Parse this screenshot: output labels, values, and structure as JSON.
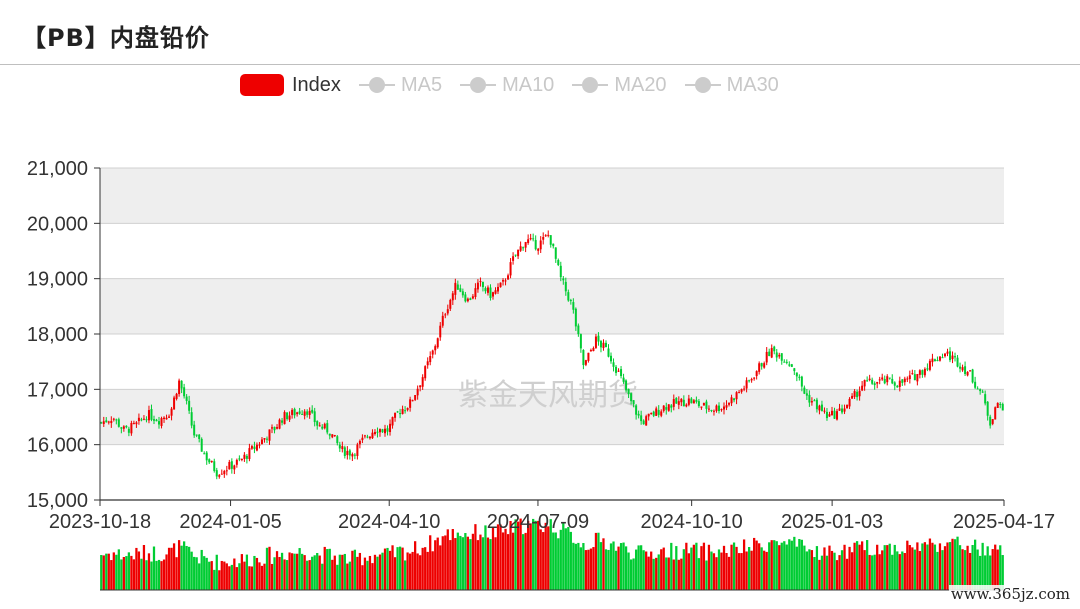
{
  "title": "【PB】内盘铅价",
  "legend": [
    {
      "label": "Index",
      "active": true,
      "color": "#ee0000"
    },
    {
      "label": "MA5",
      "active": false,
      "color": "#cccccc"
    },
    {
      "label": "MA10",
      "active": false,
      "color": "#cccccc"
    },
    {
      "label": "MA20",
      "active": false,
      "color": "#cccccc"
    },
    {
      "label": "MA30",
      "active": false,
      "color": "#cccccc"
    }
  ],
  "watermark": "紫金天风期货",
  "site_mark": "www.365jz.com",
  "colors": {
    "up": "#ee0000",
    "down": "#00cc33",
    "band": "#eeeeee",
    "grid": "#d0d0d0"
  },
  "chart_data": {
    "type": "candlestick",
    "ylim": [
      15000,
      21000
    ],
    "yticks": [
      "15,000",
      "16,000",
      "17,000",
      "18,000",
      "19,000",
      "20,000",
      "21,000"
    ],
    "ytick_values": [
      15000,
      16000,
      17000,
      18000,
      19000,
      20000,
      21000
    ],
    "xlim": [
      "2023-10-18",
      "2025-04-17"
    ],
    "xticks": [
      "2023-10-18",
      "2024-01-05",
      "2024-04-10",
      "2024-07-09",
      "2024-10-10",
      "2025-01-03",
      "2025-04-17"
    ],
    "close_series": [
      [
        "2023-10-18",
        16400
      ],
      [
        "2023-10-25",
        16500
      ],
      [
        "2023-11-01",
        16250
      ],
      [
        "2023-11-08",
        16350
      ],
      [
        "2023-11-15",
        16550
      ],
      [
        "2023-11-22",
        16450
      ],
      [
        "2023-11-29",
        16600
      ],
      [
        "2023-12-04",
        17150
      ],
      [
        "2023-12-08",
        16800
      ],
      [
        "2023-12-13",
        16200
      ],
      [
        "2023-12-20",
        15800
      ],
      [
        "2023-12-27",
        15500
      ],
      [
        "2024-01-03",
        15600
      ],
      [
        "2024-01-10",
        15700
      ],
      [
        "2024-01-17",
        15900
      ],
      [
        "2024-01-24",
        16100
      ],
      [
        "2024-01-31",
        16300
      ],
      [
        "2024-02-05",
        16500
      ],
      [
        "2024-02-19",
        16650
      ],
      [
        "2024-02-26",
        16350
      ],
      [
        "2024-03-04",
        16250
      ],
      [
        "2024-03-11",
        15900
      ],
      [
        "2024-03-18",
        15850
      ],
      [
        "2024-03-25",
        16100
      ],
      [
        "2024-04-01",
        16300
      ],
      [
        "2024-04-08",
        16250
      ],
      [
        "2024-04-15",
        16600
      ],
      [
        "2024-04-22",
        16750
      ],
      [
        "2024-04-29",
        17200
      ],
      [
        "2024-05-06",
        17700
      ],
      [
        "2024-05-13",
        18400
      ],
      [
        "2024-05-20",
        18900
      ],
      [
        "2024-05-27",
        18600
      ],
      [
        "2024-06-03",
        18900
      ],
      [
        "2024-06-10",
        18700
      ],
      [
        "2024-06-17",
        18900
      ],
      [
        "2024-06-24",
        19400
      ],
      [
        "2024-07-01",
        19700
      ],
      [
        "2024-07-08",
        19600
      ],
      [
        "2024-07-15",
        19800
      ],
      [
        "2024-07-22",
        19000
      ],
      [
        "2024-07-29",
        18500
      ],
      [
        "2024-08-05",
        17400
      ],
      [
        "2024-08-12",
        17900
      ],
      [
        "2024-08-19",
        17700
      ],
      [
        "2024-08-26",
        17300
      ],
      [
        "2024-09-02",
        16800
      ],
      [
        "2024-09-09",
        16400
      ],
      [
        "2024-09-23",
        16700
      ],
      [
        "2024-10-08",
        16800
      ],
      [
        "2024-10-15",
        16700
      ],
      [
        "2024-10-22",
        16650
      ],
      [
        "2024-10-29",
        16700
      ],
      [
        "2024-11-05",
        16900
      ],
      [
        "2024-11-12",
        17100
      ],
      [
        "2024-11-19",
        17400
      ],
      [
        "2024-11-26",
        17700
      ],
      [
        "2024-12-03",
        17600
      ],
      [
        "2024-12-10",
        17400
      ],
      [
        "2024-12-17",
        16900
      ],
      [
        "2024-12-24",
        16700
      ],
      [
        "2024-12-31",
        16500
      ],
      [
        "2025-01-07",
        16600
      ],
      [
        "2025-01-14",
        16800
      ],
      [
        "2025-01-21",
        17100
      ],
      [
        "2025-02-05",
        17150
      ],
      [
        "2025-02-12",
        17100
      ],
      [
        "2025-02-19",
        17200
      ],
      [
        "2025-02-26",
        17350
      ],
      [
        "2025-03-05",
        17550
      ],
      [
        "2025-03-12",
        17650
      ],
      [
        "2025-03-19",
        17500
      ],
      [
        "2025-03-26",
        17300
      ],
      [
        "2025-04-03",
        16900
      ],
      [
        "2025-04-08",
        16400
      ],
      [
        "2025-04-11",
        16700
      ],
      [
        "2025-04-17",
        16700
      ]
    ]
  }
}
